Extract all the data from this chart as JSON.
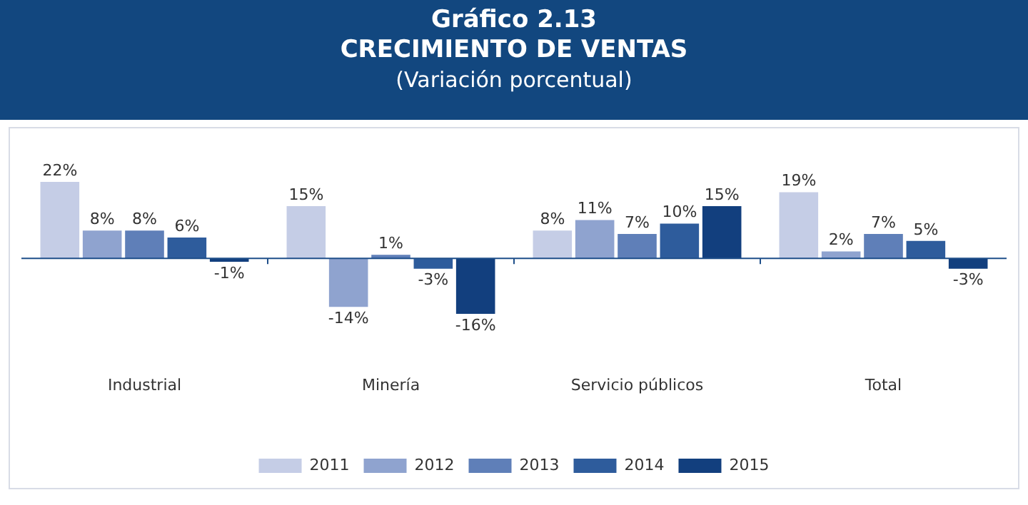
{
  "chart_data": {
    "type": "bar",
    "title": "Gráfico 2.13\nCRECIMIENTO DE VENTAS",
    "subtitle": "(Variación porcentual)",
    "categories": [
      "Industrial",
      "Minería",
      "Servicio públicos",
      "Total"
    ],
    "series": [
      {
        "name": "2011",
        "color": "#c5cde6",
        "values": [
          22,
          15,
          8,
          19
        ],
        "value_labels": [
          "22%",
          "15%",
          "8%",
          "19%"
        ]
      },
      {
        "name": "2012",
        "color": "#8fa3cf",
        "values": [
          8,
          -14,
          11,
          2
        ],
        "value_labels": [
          "8%",
          "-14%",
          "11%",
          "2%"
        ]
      },
      {
        "name": "2013",
        "color": "#5f7fb8",
        "values": [
          8,
          1,
          7,
          7
        ],
        "value_labels": [
          "8%",
          "1%",
          "7%",
          "7%"
        ]
      },
      {
        "name": "2014",
        "color": "#2e5c9c",
        "values": [
          6,
          -3,
          10,
          5
        ],
        "value_labels": [
          "6%",
          "-3%",
          "10%",
          "5%"
        ]
      },
      {
        "name": "2015",
        "color": "#123f7e",
        "values": [
          -1,
          -16,
          15,
          -3
        ],
        "value_labels": [
          "-1%",
          "-16%",
          "15%",
          "-3%"
        ]
      }
    ],
    "ref_lines": [
      {
        "axis": "y",
        "value": 0,
        "color": "#1f4f8a"
      }
    ],
    "tick_labels": "x",
    "grid": false,
    "legend": "bottom"
  }
}
